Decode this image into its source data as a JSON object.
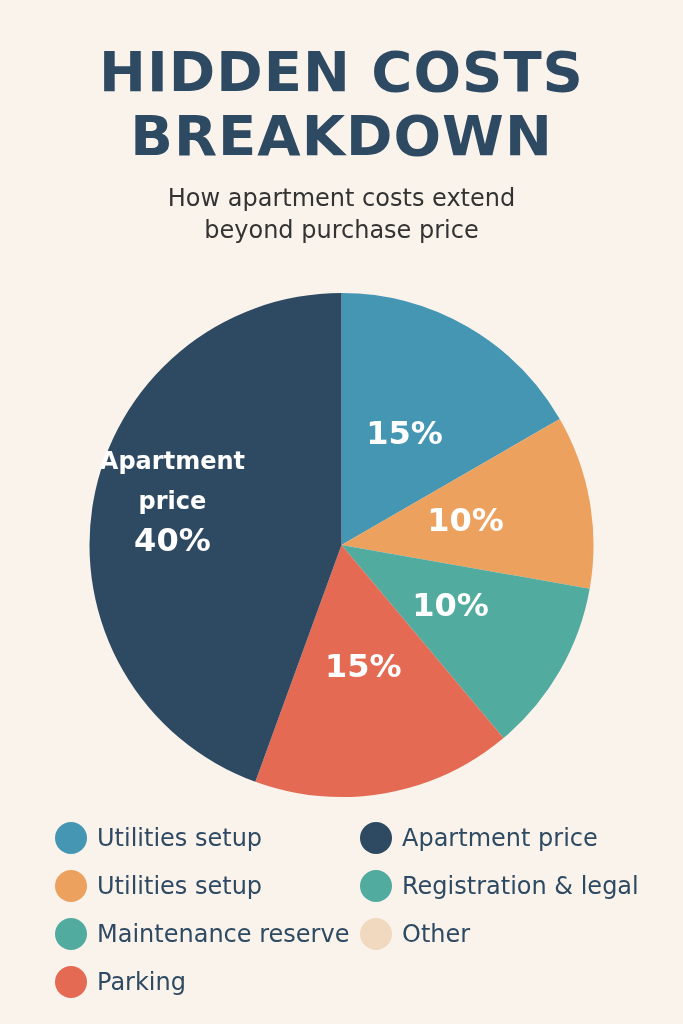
{
  "chart_data": {
    "type": "pie",
    "title": "HIDDEN COSTS BREAKDOWN",
    "subtitle": "How apartment costs extend beyond purchase price",
    "categories": [
      "Utilities setup",
      "Utilities setup",
      "Maintenance reserve",
      "Parking",
      "Apartment price",
      "Registration & legal",
      "Other"
    ],
    "values": [
      15,
      10,
      10,
      15,
      40,
      null,
      null
    ],
    "colors": [
      "#4596b3",
      "#eca15e",
      "#52ab9f",
      "#e46a53",
      "#2e4a62",
      "#52ab9f",
      "#f0d9bf"
    ],
    "value_labels": [
      "15%",
      "10%",
      "10%",
      "15%",
      "Apartment\nprice\n40%",
      null,
      null
    ],
    "legend": "bottom"
  }
}
